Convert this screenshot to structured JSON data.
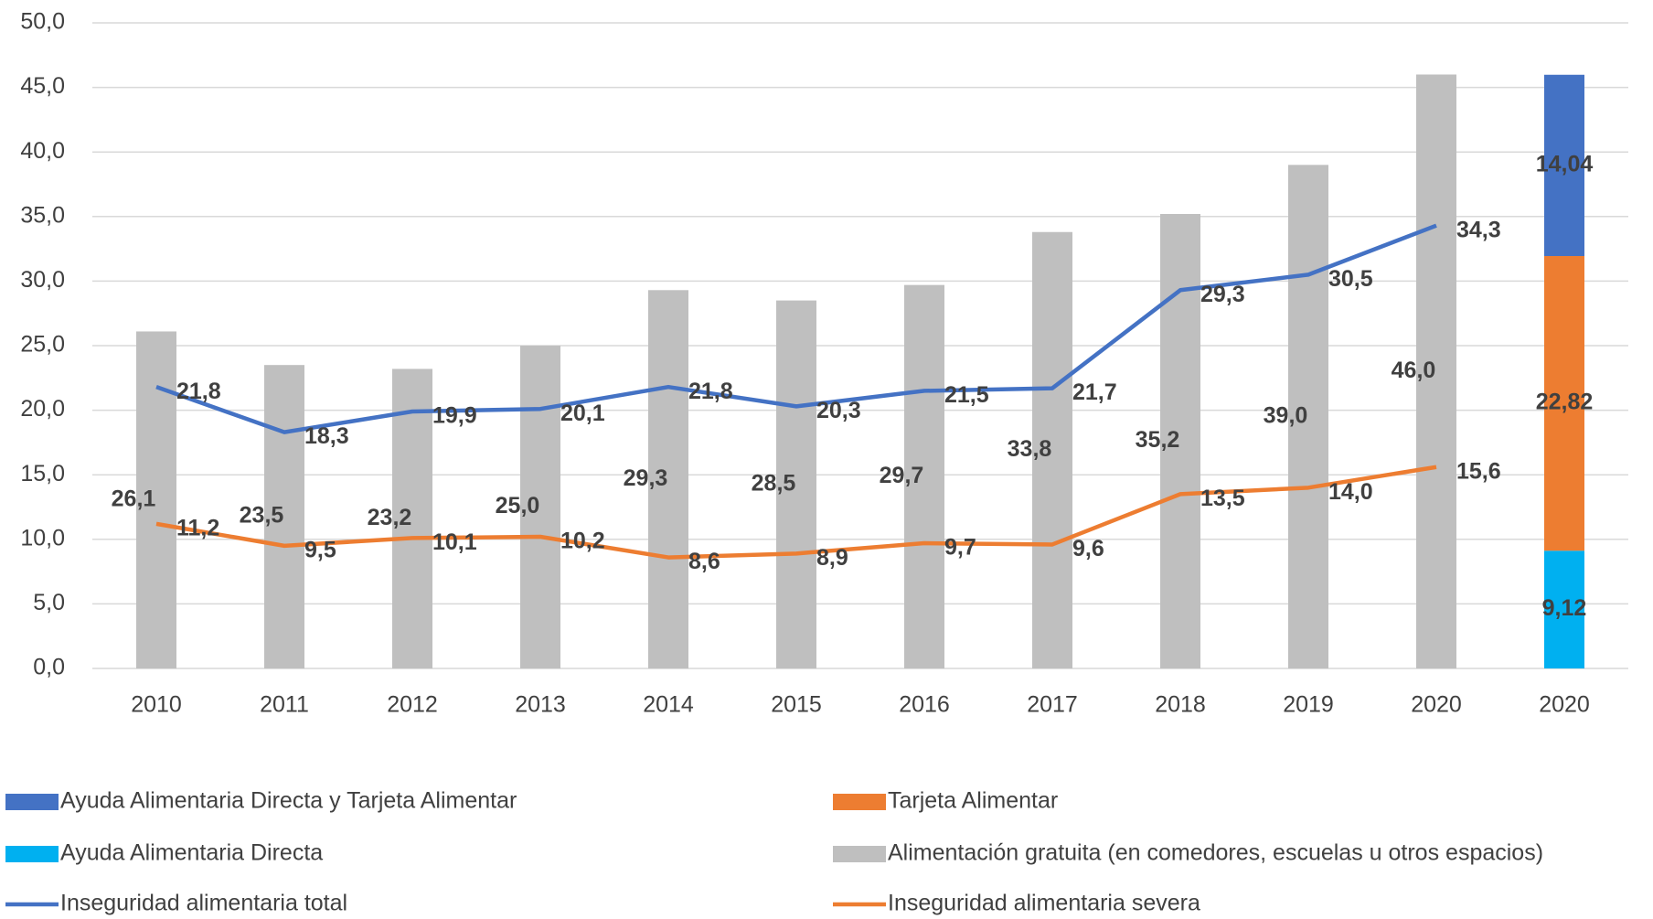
{
  "chart_data": {
    "type": "bar_line",
    "categories": [
      "2010",
      "2011",
      "2012",
      "2013",
      "2014",
      "2015",
      "2016",
      "2017",
      "2018",
      "2019",
      "2020",
      "2020"
    ],
    "ylim": [
      0,
      50
    ],
    "yticks": [
      {
        "value": 0,
        "label": "0,0"
      },
      {
        "value": 5,
        "label": "5,0"
      },
      {
        "value": 10,
        "label": "10,0"
      },
      {
        "value": 15,
        "label": "15,0"
      },
      {
        "value": 20,
        "label": "20,0"
      },
      {
        "value": 25,
        "label": "25,0"
      },
      {
        "value": 30,
        "label": "30,0"
      },
      {
        "value": 35,
        "label": "35,0"
      },
      {
        "value": 40,
        "label": "40,0"
      },
      {
        "value": 45,
        "label": "45,0"
      },
      {
        "value": 50,
        "label": "50,0"
      }
    ],
    "grid": true,
    "legend": "bottom",
    "series": [
      {
        "name": "Ayuda Alimentaria Directa y Tarjeta Alimentar",
        "kind": "stacked_bar",
        "color": "#4472c4",
        "values": [
          null,
          null,
          null,
          null,
          null,
          null,
          null,
          null,
          null,
          null,
          null,
          14.04
        ],
        "value_labels": [
          null,
          null,
          null,
          null,
          null,
          null,
          null,
          null,
          null,
          null,
          null,
          "14,04"
        ]
      },
      {
        "name": "Tarjeta Alimentar",
        "kind": "stacked_bar",
        "color": "#ed7d31",
        "values": [
          null,
          null,
          null,
          null,
          null,
          null,
          null,
          null,
          null,
          null,
          null,
          22.82
        ],
        "value_labels": [
          null,
          null,
          null,
          null,
          null,
          null,
          null,
          null,
          null,
          null,
          null,
          "22,82"
        ]
      },
      {
        "name": "Ayuda Alimentaria Directa",
        "kind": "stacked_bar",
        "color": "#00b0f0",
        "values": [
          null,
          null,
          null,
          null,
          null,
          null,
          null,
          null,
          null,
          null,
          null,
          9.12
        ],
        "value_labels": [
          null,
          null,
          null,
          null,
          null,
          null,
          null,
          null,
          null,
          null,
          null,
          "9,12"
        ]
      },
      {
        "name": "Alimentación gratuita (en comedores, escuelas u otros espacios)",
        "kind": "bar",
        "color": "#bfbfbf",
        "values": [
          26.1,
          23.5,
          23.2,
          25.0,
          29.3,
          28.5,
          29.7,
          33.8,
          35.2,
          39.0,
          46.0,
          null
        ],
        "value_labels": [
          "26,1",
          "23,5",
          "23,2",
          "25,0",
          "29,3",
          "28,5",
          "29,7",
          "33,8",
          "35,2",
          "39,0",
          "46,0",
          null
        ]
      },
      {
        "name": "Inseguridad alimentaria total",
        "kind": "line",
        "color": "#4472c4",
        "values": [
          21.8,
          18.3,
          19.9,
          20.1,
          21.8,
          20.3,
          21.5,
          21.7,
          29.3,
          30.5,
          34.3,
          null
        ],
        "value_labels": [
          "21,8",
          "18,3",
          "19,9",
          "20,1",
          "21,8",
          "20,3",
          "21,5",
          "21,7",
          "29,3",
          "30,5",
          "34,3",
          null
        ]
      },
      {
        "name": "Inseguridad alimentaria severa",
        "kind": "line",
        "color": "#ed7d31",
        "values": [
          11.2,
          9.5,
          10.1,
          10.2,
          8.6,
          8.9,
          9.7,
          9.6,
          13.5,
          14.0,
          15.6,
          null
        ],
        "value_labels": [
          "11,2",
          "9,5",
          "10,1",
          "10,2",
          "8,6",
          "8,9",
          "9,7",
          "9,6",
          "13,5",
          "14,0",
          "15,6",
          null
        ]
      }
    ]
  }
}
